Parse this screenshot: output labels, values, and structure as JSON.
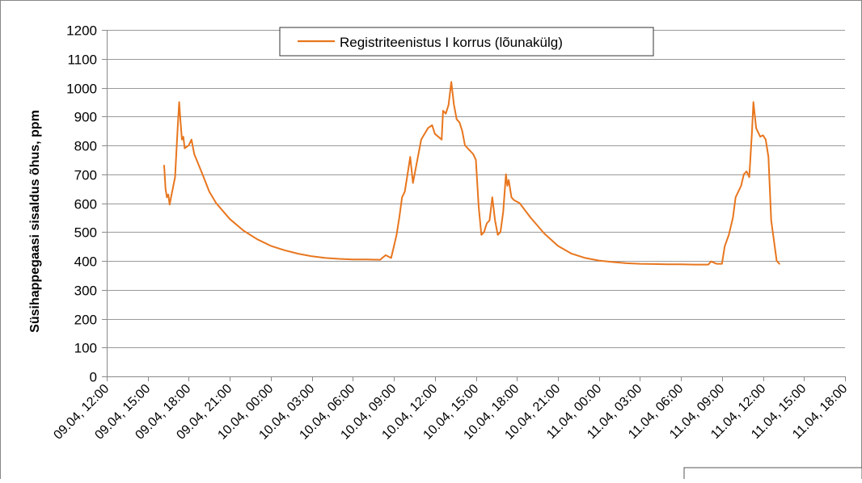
{
  "chart_data": {
    "type": "line",
    "title": "",
    "xlabel": "",
    "ylabel": "Süsihappegaasi sisaldus õhus, ppm",
    "ylim": [
      0,
      1200
    ],
    "y_ticks": [
      0,
      100,
      200,
      300,
      400,
      500,
      600,
      700,
      800,
      900,
      1000,
      1100,
      1200
    ],
    "x_ticks": [
      "09.04, 12:00",
      "09.04, 15:00",
      "09.04, 18:00",
      "09.04, 21:00",
      "10.04, 00:00",
      "10.04, 03:00",
      "10.04, 06:00",
      "10.04, 09:00",
      "10.04, 12:00",
      "10.04, 15:00",
      "10.04, 18:00",
      "10.04, 21:00",
      "11.04, 00:00",
      "11.04, 03:00",
      "11.04, 06:00",
      "11.04, 09:00",
      "11.04, 12:00",
      "11.04, 15:00",
      "11.04, 18:00"
    ],
    "grid": true,
    "legend": "top-center",
    "colors": {
      "series": "#e8761e",
      "grid": "#9a9a9a",
      "axis": "#8a8a8a",
      "frame": "#888888"
    },
    "series": [
      {
        "name": "Registriteenistus I korrus (lõunakülg)",
        "points": [
          [
            "09.04, 16:12",
            730
          ],
          [
            "09.04, 16:18",
            650
          ],
          [
            "09.04, 16:24",
            620
          ],
          [
            "09.04, 16:30",
            630
          ],
          [
            "09.04, 16:36",
            595
          ],
          [
            "09.04, 16:42",
            620
          ],
          [
            "09.04, 17:00",
            690
          ],
          [
            "09.04, 17:12",
            870
          ],
          [
            "09.04, 17:18",
            950
          ],
          [
            "09.04, 17:24",
            880
          ],
          [
            "09.04, 17:30",
            820
          ],
          [
            "09.04, 17:36",
            830
          ],
          [
            "09.04, 17:42",
            790
          ],
          [
            "09.04, 18:00",
            800
          ],
          [
            "09.04, 18:12",
            820
          ],
          [
            "09.04, 18:24",
            770
          ],
          [
            "09.04, 19:00",
            700
          ],
          [
            "09.04, 19:30",
            640
          ],
          [
            "09.04, 20:00",
            600
          ],
          [
            "09.04, 21:00",
            545
          ],
          [
            "09.04, 22:00",
            505
          ],
          [
            "09.04, 23:00",
            475
          ],
          [
            "10.04, 00:00",
            452
          ],
          [
            "10.04, 01:00",
            437
          ],
          [
            "10.04, 02:00",
            425
          ],
          [
            "10.04, 03:00",
            416
          ],
          [
            "10.04, 04:00",
            410
          ],
          [
            "10.04, 05:00",
            407
          ],
          [
            "10.04, 06:00",
            405
          ],
          [
            "10.04, 07:00",
            405
          ],
          [
            "10.04, 08:00",
            404
          ],
          [
            "10.04, 08:24",
            420
          ],
          [
            "10.04, 08:48",
            410
          ],
          [
            "10.04, 09:00",
            450
          ],
          [
            "10.04, 09:12",
            490
          ],
          [
            "10.04, 09:24",
            550
          ],
          [
            "10.04, 09:36",
            620
          ],
          [
            "10.04, 09:48",
            640
          ],
          [
            "10.04, 10:00",
            700
          ],
          [
            "10.04, 10:12",
            760
          ],
          [
            "10.04, 10:24",
            670
          ],
          [
            "10.04, 10:36",
            720
          ],
          [
            "10.04, 11:00",
            820
          ],
          [
            "10.04, 11:30",
            860
          ],
          [
            "10.04, 11:48",
            870
          ],
          [
            "10.04, 12:00",
            840
          ],
          [
            "10.04, 12:30",
            820
          ],
          [
            "10.04, 12:36",
            920
          ],
          [
            "10.04, 12:48",
            910
          ],
          [
            "10.04, 13:00",
            940
          ],
          [
            "10.04, 13:12",
            1020
          ],
          [
            "10.04, 13:24",
            940
          ],
          [
            "10.04, 13:36",
            890
          ],
          [
            "10.04, 13:48",
            880
          ],
          [
            "10.04, 14:00",
            850
          ],
          [
            "10.04, 14:12",
            800
          ],
          [
            "10.04, 14:48",
            770
          ],
          [
            "10.04, 15:00",
            750
          ],
          [
            "10.04, 15:12",
            590
          ],
          [
            "10.04, 15:24",
            490
          ],
          [
            "10.04, 15:36",
            500
          ],
          [
            "10.04, 15:48",
            530
          ],
          [
            "10.04, 16:00",
            540
          ],
          [
            "10.04, 16:12",
            620
          ],
          [
            "10.04, 16:24",
            540
          ],
          [
            "10.04, 16:36",
            490
          ],
          [
            "10.04, 16:48",
            500
          ],
          [
            "10.04, 17:00",
            570
          ],
          [
            "10.04, 17:12",
            700
          ],
          [
            "10.04, 17:18",
            660
          ],
          [
            "10.04, 17:24",
            680
          ],
          [
            "10.04, 17:36",
            620
          ],
          [
            "10.04, 17:48",
            610
          ],
          [
            "10.04, 18:12",
            600
          ],
          [
            "10.04, 19:00",
            550
          ],
          [
            "10.04, 20:00",
            495
          ],
          [
            "10.04, 21:00",
            452
          ],
          [
            "10.04, 22:00",
            425
          ],
          [
            "10.04, 23:00",
            410
          ],
          [
            "11.04, 00:00",
            401
          ],
          [
            "11.04, 01:00",
            396
          ],
          [
            "11.04, 02:00",
            392
          ],
          [
            "11.04, 03:00",
            390
          ],
          [
            "11.04, 04:00",
            389
          ],
          [
            "11.04, 05:00",
            388
          ],
          [
            "11.04, 06:00",
            388
          ],
          [
            "11.04, 07:00",
            387
          ],
          [
            "11.04, 08:00",
            387
          ],
          [
            "11.04, 08:12",
            398
          ],
          [
            "11.04, 08:36",
            390
          ],
          [
            "11.04, 09:00",
            390
          ],
          [
            "11.04, 09:12",
            450
          ],
          [
            "11.04, 09:30",
            490
          ],
          [
            "11.04, 09:48",
            550
          ],
          [
            "11.04, 10:00",
            620
          ],
          [
            "11.04, 10:24",
            660
          ],
          [
            "11.04, 10:36",
            700
          ],
          [
            "11.04, 10:48",
            710
          ],
          [
            "11.04, 11:00",
            690
          ],
          [
            "11.04, 11:12",
            850
          ],
          [
            "11.04, 11:18",
            950
          ],
          [
            "11.04, 11:30",
            860
          ],
          [
            "11.04, 11:48",
            830
          ],
          [
            "11.04, 12:00",
            835
          ],
          [
            "11.04, 12:12",
            820
          ],
          [
            "11.04, 12:24",
            760
          ],
          [
            "11.04, 12:36",
            540
          ],
          [
            "11.04, 12:48",
            470
          ],
          [
            "11.04, 13:00",
            400
          ],
          [
            "11.04, 13:12",
            390
          ]
        ]
      }
    ]
  }
}
